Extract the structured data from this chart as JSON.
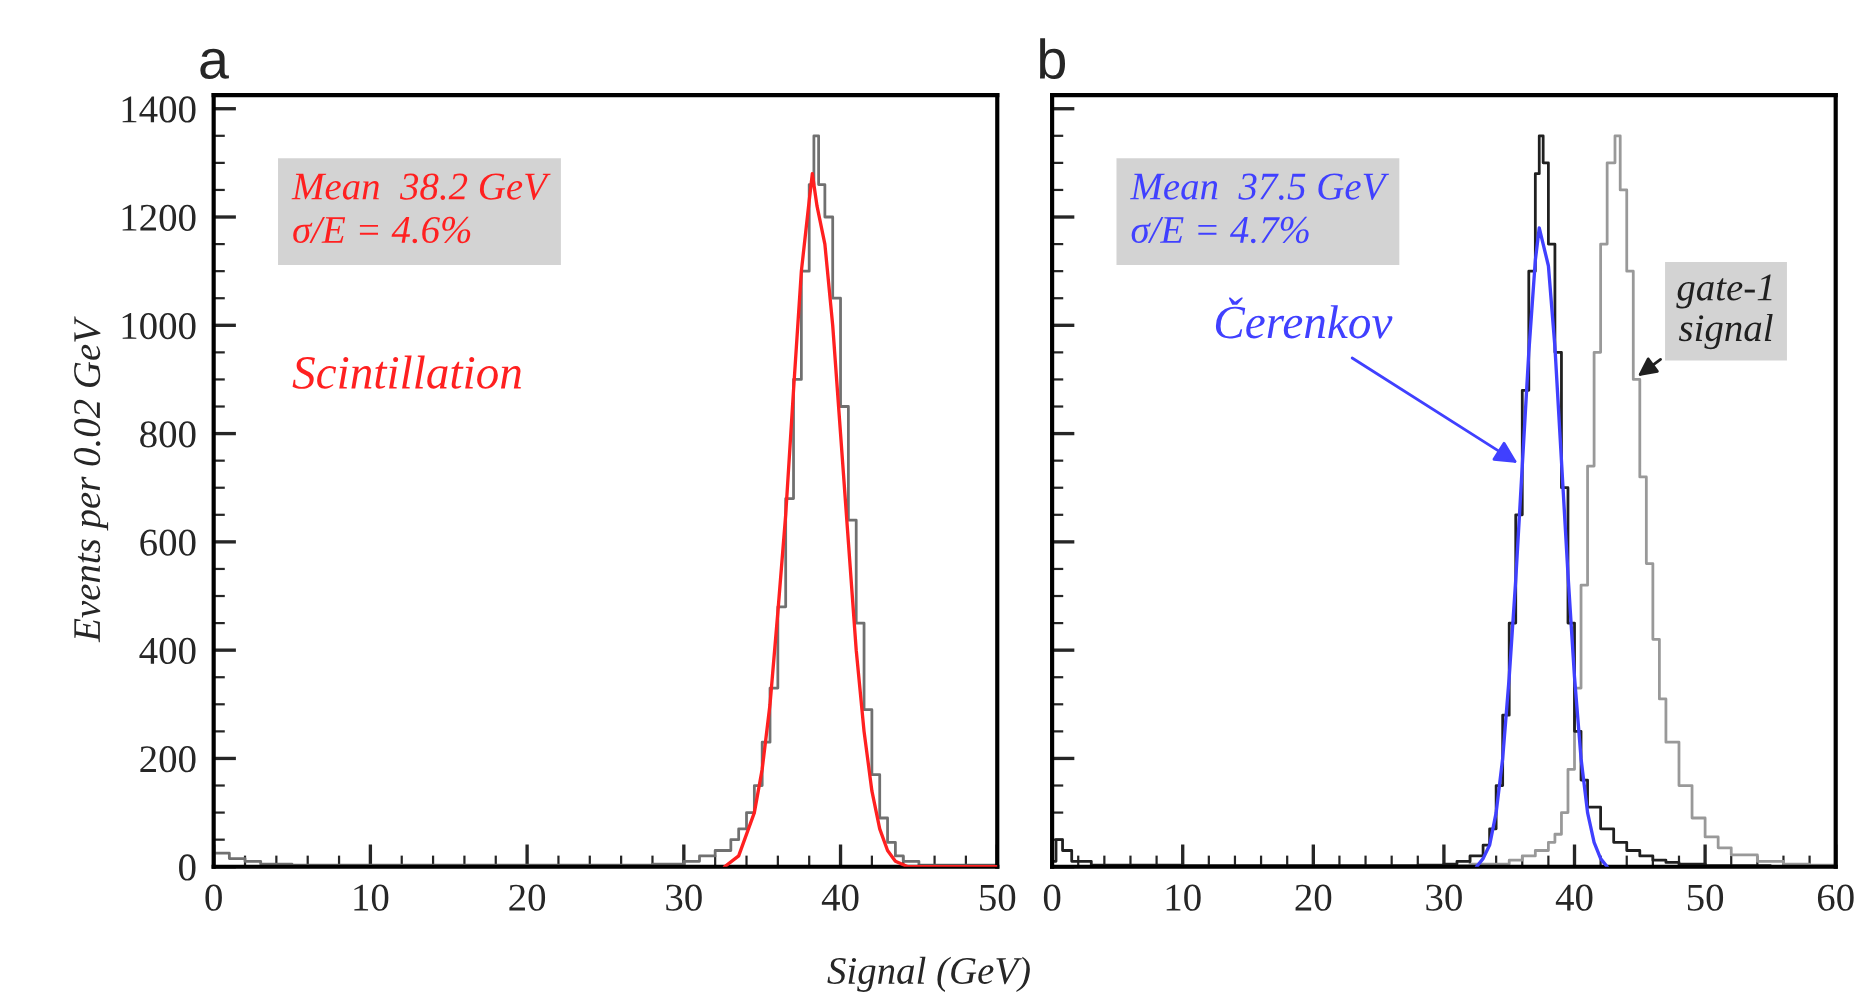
{
  "chart_data": [
    {
      "type": "line",
      "title": "a",
      "xlabel": "Signal (GeV)",
      "ylabel": "Events per 0.02 GeV",
      "xlim": [
        0,
        50
      ],
      "ylim": [
        0,
        1425
      ],
      "xticks": [
        0,
        10,
        20,
        30,
        40,
        50
      ],
      "yticks": [
        0,
        200,
        400,
        600,
        800,
        1000,
        1200,
        1400
      ],
      "annotations": [
        "Mean  38.2 GeV\nσ/E = 4.6%"
      ],
      "series": [
        {
          "type": "step",
          "color": "#707070",
          "x": [
            0,
            1,
            2,
            3,
            5,
            10,
            20,
            28,
            30,
            31,
            32,
            33,
            33.5,
            34,
            34.5,
            35,
            35.5,
            36,
            36.5,
            37,
            37.5,
            38,
            38.3,
            38.6,
            39,
            39.5,
            40,
            40.5,
            41,
            41.5,
            42,
            42.5,
            43,
            43.5,
            44,
            45,
            50
          ],
          "values": [
            25,
            15,
            10,
            5,
            3,
            3,
            3,
            5,
            10,
            20,
            30,
            50,
            70,
            100,
            150,
            230,
            330,
            480,
            680,
            900,
            1100,
            1260,
            1350,
            1260,
            1200,
            1050,
            850,
            640,
            450,
            290,
            170,
            90,
            45,
            20,
            10,
            3,
            0
          ]
        },
        {
          "name": "Scintillation",
          "color": "#ff2020",
          "x": [
            32.6,
            33.5,
            34.5,
            35,
            35.5,
            36,
            36.5,
            37,
            37.5,
            38,
            38.2,
            38.5,
            39,
            39.5,
            40,
            40.5,
            41,
            41.5,
            42,
            42.5,
            43,
            43.5,
            44.3,
            50
          ],
          "values": [
            0,
            20,
            100,
            180,
            300,
            470,
            650,
            880,
            1100,
            1230,
            1280,
            1220,
            1150,
            1000,
            800,
            600,
            400,
            250,
            140,
            70,
            30,
            10,
            0,
            0
          ]
        }
      ]
    },
    {
      "type": "line",
      "title": "b",
      "xlim": [
        0,
        60
      ],
      "ylim": [
        0,
        1425
      ],
      "xticks": [
        0,
        10,
        20,
        30,
        40,
        50,
        60
      ],
      "yticks": [
        0,
        200,
        400,
        600,
        800,
        1000,
        1200,
        1400
      ],
      "tick_labels": "x",
      "annotations": [
        "Mean  37.5 GeV\nσ/E = 4.7%"
      ],
      "series": [
        {
          "type": "step",
          "name": "gate-1\nsignal",
          "color": "#999999",
          "x": [
            28,
            32,
            35,
            36,
            37,
            38,
            38.5,
            39,
            39.5,
            40,
            40.5,
            41,
            41.5,
            42,
            42.5,
            43.1,
            43.5,
            44,
            44.5,
            45,
            45.5,
            46,
            46.5,
            47,
            48,
            49,
            50,
            51,
            52,
            54,
            56,
            58,
            60
          ],
          "values": [
            2,
            5,
            12,
            20,
            30,
            45,
            60,
            100,
            180,
            330,
            520,
            740,
            950,
            1150,
            1300,
            1350,
            1250,
            1100,
            900,
            720,
            560,
            420,
            310,
            230,
            150,
            90,
            55,
            35,
            22,
            10,
            5,
            3,
            1
          ]
        },
        {
          "type": "step",
          "color": "#202020",
          "x": [
            0,
            0.3,
            0.8,
            1.5,
            3,
            10,
            20,
            28,
            30,
            31,
            32,
            33,
            33.5,
            34,
            34.5,
            35,
            35.5,
            36,
            36.5,
            37,
            37.3,
            37.6,
            38,
            38.5,
            39,
            39.5,
            40,
            40.5,
            41,
            42,
            43,
            44,
            45,
            46,
            47,
            48,
            50,
            55
          ],
          "values": [
            10,
            50,
            30,
            10,
            3,
            2,
            2,
            3,
            5,
            10,
            20,
            40,
            70,
            150,
            280,
            450,
            650,
            880,
            1100,
            1280,
            1350,
            1300,
            1150,
            950,
            700,
            450,
            250,
            160,
            110,
            70,
            45,
            30,
            20,
            12,
            8,
            5,
            2,
            0
          ]
        },
        {
          "name": "Čerenkov",
          "color": "#4040ff",
          "x": [
            32.5,
            33,
            33.5,
            34,
            34.5,
            35,
            35.5,
            36,
            36.5,
            37,
            37.3,
            37.6,
            38,
            38.5,
            39,
            39.5,
            40,
            40.5,
            41,
            41.5,
            42,
            42.5
          ],
          "values": [
            0,
            15,
            40,
            100,
            200,
            350,
            530,
            740,
            950,
            1120,
            1180,
            1150,
            1110,
            960,
            750,
            540,
            350,
            200,
            100,
            45,
            15,
            0
          ]
        }
      ]
    }
  ]
}
